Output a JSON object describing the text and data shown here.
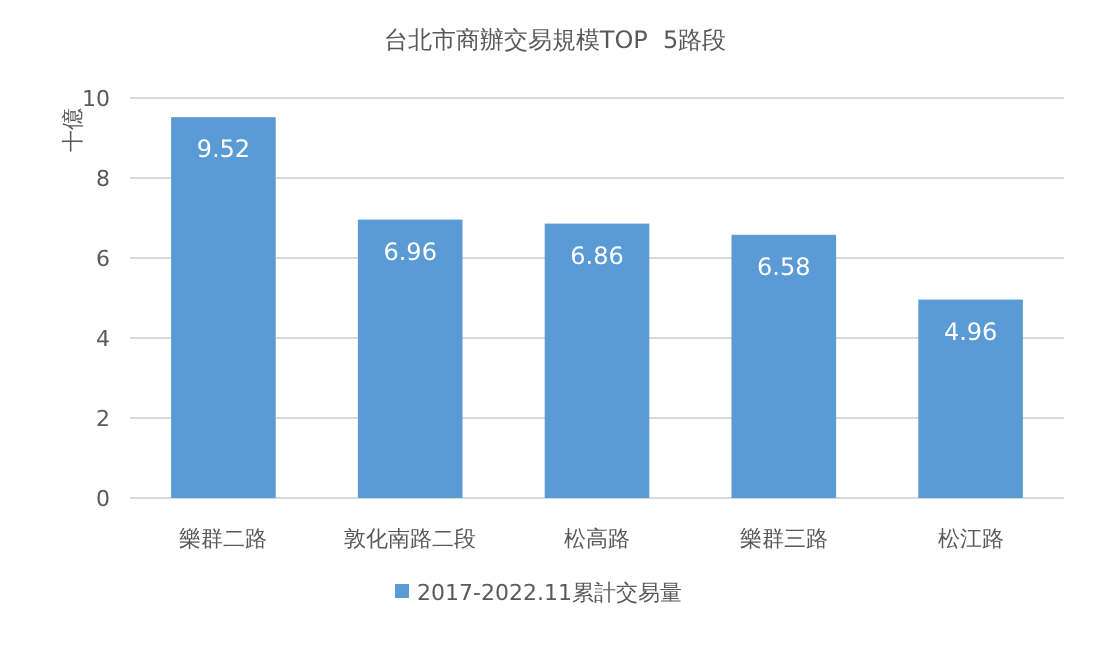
{
  "chart_data": {
    "type": "bar",
    "title": "台北市商辦交易規模TOP  5路段",
    "ylabel": "十億",
    "categories": [
      "樂群二路",
      "敦化南路二段",
      "松高路",
      "樂群三路",
      "松江路"
    ],
    "series": [
      {
        "name": "2017-2022.11累計交易量",
        "color": "#5b9bd5",
        "values": [
          9.52,
          6.96,
          6.86,
          6.58,
          4.96
        ]
      }
    ],
    "ylim": [
      0,
      10
    ],
    "yticks": [
      0,
      2,
      4,
      6,
      8,
      10
    ],
    "grid": "y",
    "legend": "bottom",
    "data_labels": true
  }
}
